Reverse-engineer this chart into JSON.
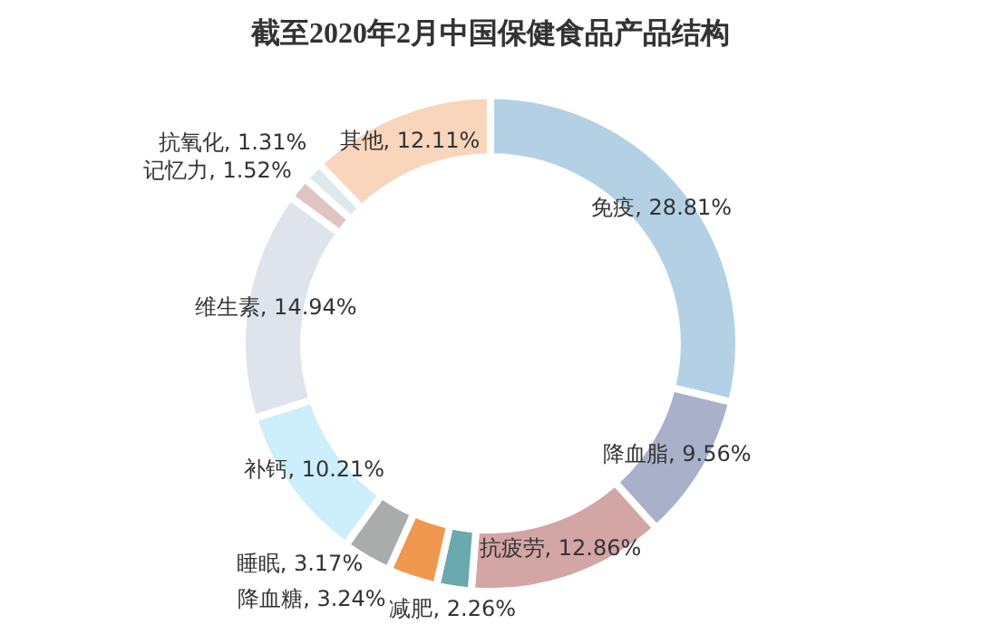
{
  "chart_data": {
    "type": "donut",
    "title": "截至2020年2月中国保健食品产品结构",
    "categories": [
      "免疫",
      "降血脂",
      "抗疲劳",
      "减肥",
      "降血糖",
      "睡眠",
      "补钙",
      "维生素",
      "记忆力",
      "抗氧化",
      "其他"
    ],
    "values": [
      28.81,
      9.56,
      12.86,
      2.26,
      3.24,
      3.17,
      10.21,
      14.94,
      1.52,
      1.31,
      12.11
    ],
    "value_labels": [
      "28.81%",
      "9.56%",
      "12.86%",
      "2.26%",
      "3.24%",
      "3.17%",
      "10.21%",
      "14.94%",
      "1.52%",
      "1.31%",
      "12.11%"
    ],
    "colors": [
      "#b4d0e4",
      "#a9b0c9",
      "#d4a5a5",
      "#6aa9ad",
      "#f0984e",
      "#a9acab",
      "#cdeefb",
      "#dfe3ec",
      "#e2c3c4",
      "#dde9ec",
      "#f8d5bb"
    ],
    "legend": false
  }
}
